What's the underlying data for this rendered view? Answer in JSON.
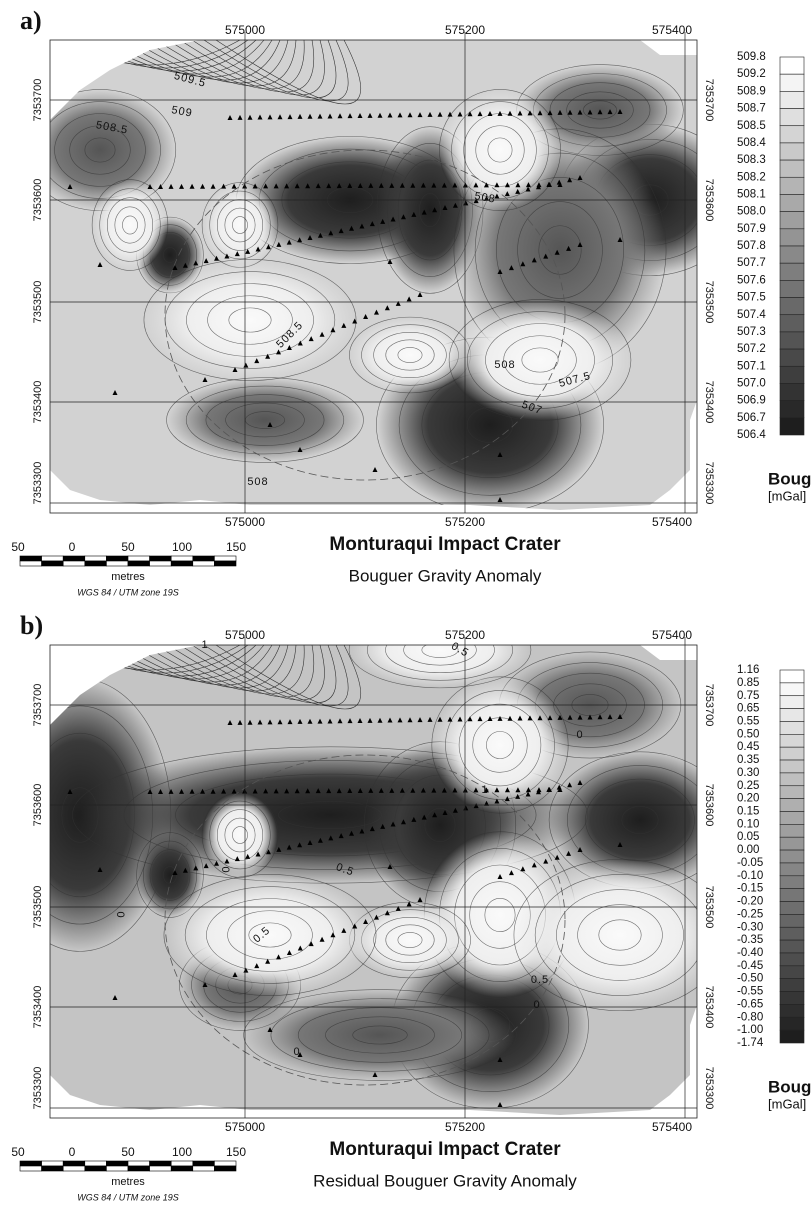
{
  "panels": [
    {
      "label": "a)",
      "x_ticks": [
        "575000",
        "575200",
        "575400"
      ],
      "y_ticks": [
        "7353700",
        "7353600",
        "7353500",
        "7353400",
        "7353300"
      ],
      "contour_labels": [
        "509.5",
        "509",
        "508.5",
        "508",
        "508.5",
        "508",
        "507.5",
        "507",
        "508"
      ],
      "legend": {
        "levels": [
          "509.8",
          "509.2",
          "508.9",
          "508.7",
          "508.5",
          "508.4",
          "508.3",
          "508.2",
          "508.1",
          "508.0",
          "507.9",
          "507.8",
          "507.7",
          "507.6",
          "507.5",
          "507.4",
          "507.3",
          "507.2",
          "507.1",
          "507.0",
          "506.9",
          "506.7",
          "506.4"
        ],
        "title": "Boug",
        "unit": "[mGal]"
      },
      "scale": {
        "ticks": [
          "50",
          "0",
          "50",
          "100",
          "150"
        ],
        "unit": "metres",
        "datum": "WGS 84 / UTM zone 19S"
      },
      "title": "Monturaqui Impact Crater",
      "subtitle": "Bouguer Gravity Anomaly"
    },
    {
      "label": "b)",
      "x_ticks": [
        "575000",
        "575200",
        "575400"
      ],
      "y_ticks": [
        "7353700",
        "7353600",
        "7353500",
        "7353400",
        "7353300"
      ],
      "contour_labels": [
        "1",
        "0.5",
        "0",
        "1",
        "0",
        "0.5",
        "0",
        "0.5",
        "0.5",
        "0",
        "0"
      ],
      "legend": {
        "levels": [
          "1.16",
          "0.85",
          "0.75",
          "0.65",
          "0.55",
          "0.50",
          "0.45",
          "0.35",
          "0.30",
          "0.25",
          "0.20",
          "0.15",
          "0.10",
          "0.05",
          "0.00",
          "-0.05",
          "-0.10",
          "-0.15",
          "-0.20",
          "-0.25",
          "-0.30",
          "-0.35",
          "-0.40",
          "-0.45",
          "-0.50",
          "-0.55",
          "-0.65",
          "-0.80",
          "-1.00",
          "-1.74"
        ],
        "title": "Boug",
        "unit": "[mGal]"
      },
      "scale": {
        "ticks": [
          "50",
          "0",
          "50",
          "100",
          "150"
        ],
        "unit": "metres",
        "datum": "WGS 84 / UTM zone 19S"
      },
      "title": "Monturaqui Impact Crater",
      "subtitle": "Residual Bouguer Gravity Anomaly"
    }
  ]
}
